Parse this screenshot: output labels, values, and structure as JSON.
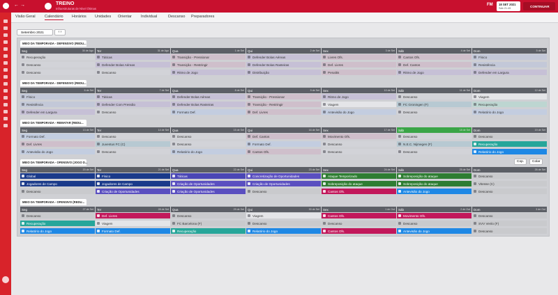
{
  "header": {
    "title": "TREINO",
    "subtitle": "Infraestruturas de Nível Ótimas",
    "date": "18 SET 2021",
    "time": "Sáb 21:45",
    "brand": "FM",
    "continue": "CONTINUAR"
  },
  "tabs": [
    "Visão Geral",
    "Calendário",
    "Horários",
    "Unidades",
    "Orientar",
    "Individual",
    "Descanso",
    "Preparadores"
  ],
  "active_tab": 1,
  "month": "Setembro 2021",
  "week_actions": [
    "Cop.",
    "Colar"
  ],
  "weeks": [
    {
      "title": "MEIO DA TEMPORADA - DEFENSIVO (REDU...",
      "days": [
        {
          "day": "Seg",
          "date": "30 de Ago",
          "sessions": [
            {
              "text": "Recuperação",
              "color": "#d2d3d8"
            },
            {
              "text": "Descanso",
              "color": "#d2d3d8"
            },
            {
              "text": "Descanso",
              "color": "#d2d3d8"
            }
          ]
        },
        {
          "day": "Ter",
          "date": "31 de Ago",
          "sessions": [
            {
              "text": "Táticas",
              "color": "#c6c0d6"
            },
            {
              "text": "Defender Bolas Aéreas",
              "color": "#c6c0d6"
            },
            {
              "text": "Descanso",
              "color": "#d2d3d8"
            }
          ]
        },
        {
          "day": "Qua",
          "date": "1 de Set",
          "sessions": [
            {
              "text": "Transição - Pressionar",
              "color": "#cfbfcb"
            },
            {
              "text": "Transição - Restringir",
              "color": "#cfbfcb"
            },
            {
              "text": "Ritmo de Jogo",
              "color": "#c6c0d6"
            }
          ]
        },
        {
          "day": "Qui",
          "date": "2 de Set",
          "sessions": [
            {
              "text": "Defender Bolas Aéreas",
              "color": "#c6c0d6"
            },
            {
              "text": "Defender Bolas Rasteiras",
              "color": "#c6c0d6"
            },
            {
              "text": "Distribuição",
              "color": "#c6c0d6"
            }
          ]
        },
        {
          "day": "Sex",
          "date": "3 de Set",
          "sessions": [
            {
              "text": "Livres Ofs.",
              "color": "#cfbfcb"
            },
            {
              "text": "Def. Livres",
              "color": "#cfbfcb"
            },
            {
              "text": "Penaltis",
              "color": "#cfbfcb"
            }
          ]
        },
        {
          "day": "Sáb",
          "date": "4 de Set",
          "sessions": [
            {
              "text": "Cantos Ofs.",
              "color": "#cfbfcb"
            },
            {
              "text": "Def. Cantos",
              "color": "#cfbfcb"
            },
            {
              "text": "Ritmo de Jogo",
              "color": "#c6c0d6"
            }
          ]
        },
        {
          "day": "Dom",
          "date": "5 de Set",
          "sessions": [
            {
              "text": "Físico",
              "color": "#c3c8d8"
            },
            {
              "text": "Resistência",
              "color": "#c3c8d8"
            },
            {
              "text": "Defender em Largura",
              "color": "#c6c0d6"
            }
          ]
        }
      ]
    },
    {
      "title": "MEIO DA TEMPORADA - DEFENSIVO (REDU...",
      "days": [
        {
          "day": "Seg",
          "date": "6 de Set",
          "sessions": [
            {
              "text": "Físico",
              "color": "#c3c8d8"
            },
            {
              "text": "Resistência",
              "color": "#c3c8d8"
            },
            {
              "text": "Defender em Largura",
              "color": "#c6c0d6"
            }
          ]
        },
        {
          "day": "Ter",
          "date": "7 de Set",
          "sessions": [
            {
              "text": "Táticas",
              "color": "#c6c0d6"
            },
            {
              "text": "Defender Com Pressão",
              "color": "#c6c0d6"
            },
            {
              "text": "Descanso",
              "color": "#d2d3d8"
            }
          ]
        },
        {
          "day": "Qua",
          "date": "8 de Set",
          "sessions": [
            {
              "text": "Defender Bolas Aéreas",
              "color": "#c6c0d6"
            },
            {
              "text": "Defender Bolas Rasteiras",
              "color": "#c6c0d6"
            },
            {
              "text": "Formato Def.",
              "color": "#c3cde0"
            }
          ]
        },
        {
          "day": "Qui",
          "date": "9 de Set",
          "sessions": [
            {
              "text": "Transição - Pressionar",
              "color": "#cfbfcb"
            },
            {
              "text": "Transição - Restringir",
              "color": "#cfbfcb"
            },
            {
              "text": "Def. Livres",
              "color": "#cfbfcb"
            }
          ]
        },
        {
          "day": "Sex",
          "date": "10 de Set",
          "sessions": [
            {
              "text": "Ritmo de Jogo",
              "color": "#c6c0d6"
            },
            {
              "text": "Viagem",
              "color": "#e4e5e8"
            },
            {
              "text": "Antevisão do Jogo",
              "color": "#c3cde0"
            }
          ]
        },
        {
          "day": "Sáb",
          "date": "11 de Set",
          "sessions": [
            {
              "text": "Descanso",
              "color": "#d2d3d8"
            },
            {
              "text": "FC Groningen (F)",
              "color": "#b7c9d2"
            },
            {
              "text": "Descanso",
              "color": "#d2d3d8"
            }
          ]
        },
        {
          "day": "Dom",
          "date": "12 de Set",
          "sessions": [
            {
              "text": "Viagem",
              "color": "#e4e5e8"
            },
            {
              "text": "Recuperação",
              "color": "#bdd6d1"
            },
            {
              "text": "Relatório do Jogo",
              "color": "#c3cde0"
            }
          ]
        }
      ]
    },
    {
      "title": "MEIO DA TEMPORADA - REMATAR (REDU...",
      "days": [
        {
          "day": "Seg",
          "date": "13 de Set",
          "sessions": [
            {
              "text": "Formato Def.",
              "color": "#c3cde0"
            },
            {
              "text": "Def. Livres",
              "color": "#cfbfcb"
            },
            {
              "text": "Antevisão do Jogo",
              "color": "#c3cde0"
            }
          ]
        },
        {
          "day": "Ter",
          "date": "14 de Set",
          "sessions": [
            {
              "text": "Descanso",
              "color": "#d2d3d8"
            },
            {
              "text": "Juventus FC (C)",
              "color": "#b7c9d2"
            },
            {
              "text": "Descanso",
              "color": "#d2d3d8"
            }
          ]
        },
        {
          "day": "Qua",
          "date": "15 de Set",
          "sessions": [
            {
              "text": "Descanso",
              "color": "#d2d3d8"
            },
            {
              "text": "Descanso",
              "color": "#d2d3d8"
            },
            {
              "text": "Relatório do Jogo",
              "color": "#c3cde0"
            }
          ]
        },
        {
          "day": "Qui",
          "date": "16 de Set",
          "sessions": [
            {
              "text": "Def. Cantos",
              "color": "#cfbfcb"
            },
            {
              "text": "Formato Def.",
              "color": "#c3cde0"
            },
            {
              "text": "Cantos Ofs.",
              "color": "#cfbfcb"
            }
          ]
        },
        {
          "day": "Sex",
          "date": "17 de Set",
          "sessions": [
            {
              "text": "Movimento Ofs.",
              "color": "#cfbfcb"
            },
            {
              "text": "Descanso",
              "color": "#d2d3d8"
            },
            {
              "text": "Descanso",
              "color": "#d2d3d8"
            }
          ]
        },
        {
          "day": "Sáb",
          "date": "18 de Set",
          "header_color": "#3aa547",
          "sessions": [
            {
              "text": "Descanso",
              "color": "#d2d3d8"
            },
            {
              "text": "N.E.C. Nijmegen (F)",
              "color": "#b7c9d2"
            },
            {
              "text": "Descanso",
              "color": "#d2d3d8"
            }
          ]
        },
        {
          "day": "Dom",
          "date": "19 de Set",
          "sessions": [
            {
              "text": "Descanso",
              "color": "#c9cacd"
            },
            {
              "text": "Recuperação",
              "color": "#26a69a"
            },
            {
              "text": "Relatório do Jogo",
              "color": "#1e88e5"
            }
          ]
        }
      ]
    },
    {
      "title": "MEIO DA TEMPORADA - OFENSIVO (JOGO D...",
      "days": [
        {
          "day": "Seg",
          "date": "20 de Set",
          "sessions": [
            {
              "text": "Global",
              "color": "#1a3a8a"
            },
            {
              "text": "Jogadores de Campo",
              "color": "#1a3a8a"
            },
            {
              "text": "Descanso",
              "color": "#c9cacd"
            }
          ]
        },
        {
          "day": "Ter",
          "date": "21 de Set",
          "sessions": [
            {
              "text": "Físico",
              "color": "#1a3a8a"
            },
            {
              "text": "Jogadores de Campo",
              "color": "#1a3a8a"
            },
            {
              "text": "Criação de Oportunidades",
              "color": "#5a4fc0"
            }
          ]
        },
        {
          "day": "Qua",
          "date": "22 de Set",
          "sessions": [
            {
              "text": "Táticas",
              "color": "#4a47b5"
            },
            {
              "text": "Criação de Oportunidades",
              "color": "#5a4fc0"
            },
            {
              "text": "Criação de Oportunidades",
              "color": "#5a4fc0"
            }
          ]
        },
        {
          "day": "Qui",
          "date": "23 de Set",
          "sessions": [
            {
              "text": "Concretização de Oportunidades",
              "color": "#5a4fc0"
            },
            {
              "text": "Criação de Oportunidades",
              "color": "#5a4fc0"
            },
            {
              "text": "Descanso",
              "color": "#c9cacd"
            }
          ]
        },
        {
          "day": "Sex",
          "date": "24 de Set",
          "sessions": [
            {
              "text": "Ataque Temporizado",
              "color": "#2e7d32"
            },
            {
              "text": "Sobreposição do ataque",
              "color": "#2e7d32"
            },
            {
              "text": "Cantos Ofs.",
              "color": "#c2185b"
            }
          ]
        },
        {
          "day": "Sáb",
          "date": "25 de Set",
          "sessions": [
            {
              "text": "Sobreposição do ataque",
              "color": "#2e7d32"
            },
            {
              "text": "Sobreposição do ataque",
              "color": "#2e7d32"
            },
            {
              "text": "Antevisão do Jogo",
              "color": "#1e88e5"
            }
          ]
        },
        {
          "day": "Dom",
          "date": "26 de Set",
          "sessions": [
            {
              "text": "Descanso",
              "color": "#c9cacd"
            },
            {
              "text": "Vitesse (C)",
              "color": "#c9cacd"
            },
            {
              "text": "Descanso",
              "color": "#c9cacd"
            }
          ]
        }
      ]
    },
    {
      "title": "MEIO DA TEMPORADA - OFENSIVO (REDU...",
      "days": [
        {
          "day": "Seg",
          "date": "27 de Set",
          "sessions": [
            {
              "text": "Descanso",
              "color": "#c9cacd"
            },
            {
              "text": "Recuperação",
              "color": "#26a69a"
            },
            {
              "text": "Relatório do Jogo",
              "color": "#1e88e5"
            }
          ]
        },
        {
          "day": "Ter",
          "date": "28 de Set",
          "sessions": [
            {
              "text": "Def. Livres",
              "color": "#c2185b"
            },
            {
              "text": "Viagem",
              "color": "#e4e5e8"
            },
            {
              "text": "Formato Def.",
              "color": "#1e88e5"
            }
          ]
        },
        {
          "day": "Qua",
          "date": "29 de Set",
          "sessions": [
            {
              "text": "Descanso",
              "color": "#c9cacd"
            },
            {
              "text": "FC Barcelona (F)",
              "color": "#c9cacd"
            },
            {
              "text": "Recuperação",
              "color": "#26a69a"
            }
          ]
        },
        {
          "day": "Qui",
          "date": "30 de Set",
          "sessions": [
            {
              "text": "Viagem",
              "color": "#e4e5e8"
            },
            {
              "text": "Descanso",
              "color": "#c9cacd"
            },
            {
              "text": "Relatório do Jogo",
              "color": "#1e88e5"
            }
          ]
        },
        {
          "day": "Sex",
          "date": "1 de Out",
          "sessions": [
            {
              "text": "Cantos Ofs.",
              "color": "#c2185b"
            },
            {
              "text": "Descanso",
              "color": "#c9cacd"
            },
            {
              "text": "Cantos Ofs.",
              "color": "#c2185b"
            }
          ]
        },
        {
          "day": "Sáb",
          "date": "2 de Out",
          "sessions": [
            {
              "text": "Movimento Ofs.",
              "color": "#c2185b"
            },
            {
              "text": "Descanso",
              "color": "#c9cacd"
            },
            {
              "text": "Antevisão do Jogo",
              "color": "#1e88e5"
            }
          ]
        },
        {
          "day": "Dom",
          "date": "3 de Out",
          "sessions": [
            {
              "text": "Descanso",
              "color": "#c9cacd"
            },
            {
              "text": "SVV Venlo (F)",
              "color": "#c9cacd"
            },
            {
              "text": "Descanso",
              "color": "#c9cacd"
            }
          ]
        }
      ]
    }
  ]
}
